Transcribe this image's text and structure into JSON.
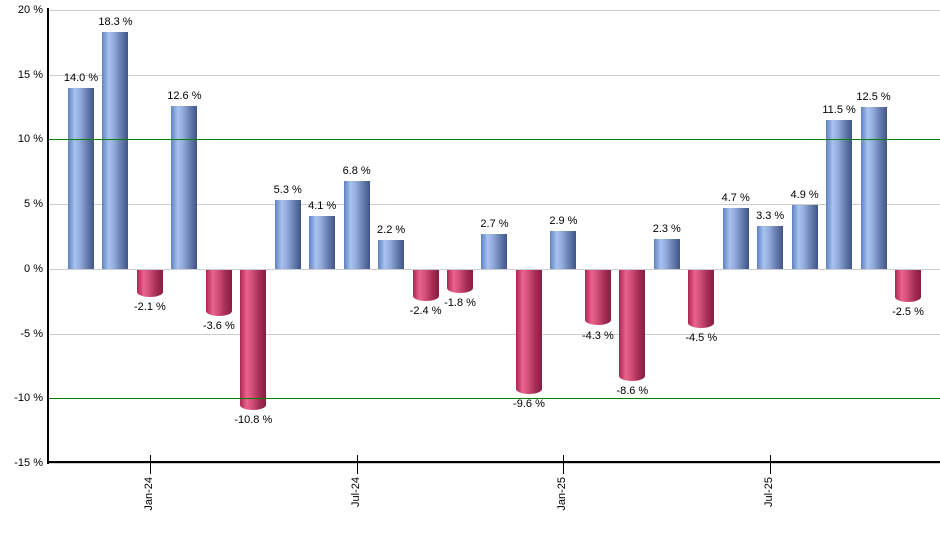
{
  "chart_data": {
    "type": "bar",
    "title": "",
    "xlabel": "",
    "ylabel": "",
    "ylim": [
      -15,
      20
    ],
    "grid": true,
    "legend": "none",
    "values": [
      14.0,
      18.3,
      -2.1,
      12.6,
      -3.6,
      -10.8,
      5.3,
      4.1,
      6.8,
      2.2,
      -2.4,
      -1.8,
      2.7,
      -9.6,
      2.9,
      -4.3,
      -8.6,
      2.3,
      -4.5,
      4.7,
      3.3,
      4.9,
      11.5,
      12.5,
      -2.5
    ],
    "bar_labels": [
      "14.0 %",
      "18.3 %",
      "-2.1 %",
      "12.6 %",
      "-3.6 %",
      "-10.8 %",
      "5.3 %",
      "4.1 %",
      "6.8 %",
      "2.2 %",
      "-2.4 %",
      "-1.8 %",
      "2.7 %",
      "-9.6 %",
      "2.9 %",
      "-4.3 %",
      "-8.6 %",
      "2.3 %",
      "-4.5 %",
      "4.7 %",
      "3.3 %",
      "4.9 %",
      "11.5 %",
      "12.5 %",
      "-2.5 %"
    ],
    "x_ticks": [
      {
        "bar_index": 2,
        "label": "Jan-24"
      },
      {
        "bar_index": 8,
        "label": "Jul-24"
      },
      {
        "bar_index": 14,
        "label": "Jan-25"
      },
      {
        "bar_index": 20,
        "label": "Jul-25"
      }
    ],
    "y_ticks": [
      {
        "value": 20,
        "label": "20 %"
      },
      {
        "value": 15,
        "label": "15 %"
      },
      {
        "value": 10,
        "label": "10 %"
      },
      {
        "value": 5,
        "label": "5 %"
      },
      {
        "value": 0,
        "label": "0 %"
      },
      {
        "value": -5,
        "label": "-5 %"
      },
      {
        "value": -10,
        "label": "-10 %"
      },
      {
        "value": -15,
        "label": "-15 %"
      }
    ],
    "reference_lines": [
      {
        "value": 10,
        "color": "#008000"
      },
      {
        "value": -10,
        "color": "#008000"
      }
    ],
    "colors": {
      "positive_bar_gradient": [
        "#5e82c0",
        "#a8c3f0",
        "#8fa9da",
        "#6880b0",
        "#415489"
      ],
      "negative_bar_gradient": [
        "#ae2453",
        "#e9648c",
        "#d04e76",
        "#a93057",
        "#871c42"
      ],
      "reference_line": "#008000",
      "gridline": "#cccccc",
      "axis": "#000000",
      "background": "#ffffff"
    }
  }
}
